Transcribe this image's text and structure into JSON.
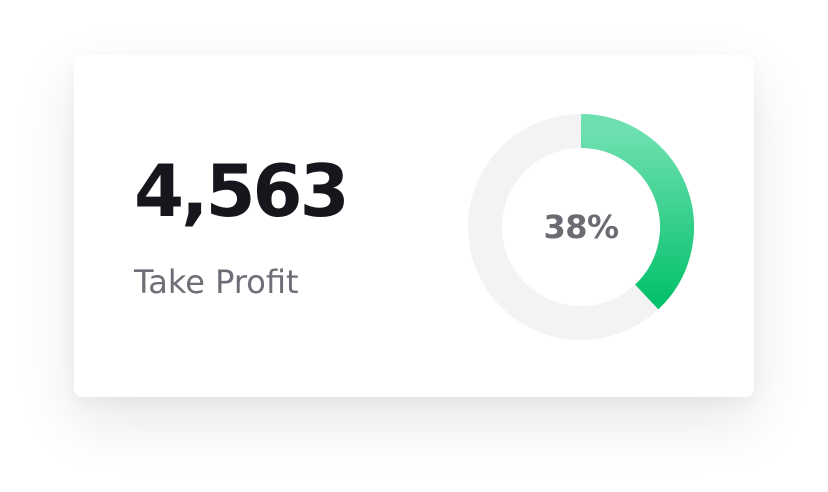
{
  "stat": {
    "value": "4,563",
    "label": "Take Profit"
  },
  "progress": {
    "percent": 38,
    "percent_label": "38%",
    "track_color": "#f3f3f5",
    "gradient_start": "#6ee0b0",
    "gradient_end": "#07c26d"
  }
}
